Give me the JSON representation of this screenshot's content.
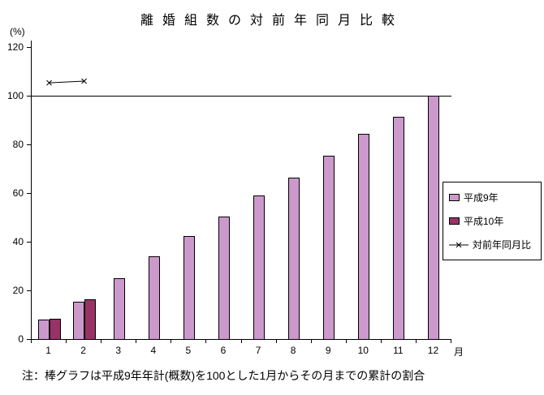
{
  "chart_data": {
    "type": "bar",
    "title": "離婚組数の対前年同月比較",
    "ylabel": "(%)",
    "xlabel": "月",
    "ylim": [
      0,
      120
    ],
    "yticks": [
      0,
      20,
      40,
      60,
      80,
      100,
      120
    ],
    "categories": [
      "1",
      "2",
      "3",
      "4",
      "5",
      "6",
      "7",
      "8",
      "9",
      "10",
      "11",
      "12"
    ],
    "reference_line": 100,
    "grid": false,
    "legend_position": "right",
    "series": [
      {
        "name": "平成9年",
        "type": "bar",
        "color": "#cc99cc",
        "values": [
          8,
          15.5,
          25,
          34,
          42.5,
          50.5,
          59,
          66.5,
          75.5,
          84.5,
          91.5,
          100
        ]
      },
      {
        "name": "平成10年",
        "type": "bar",
        "color": "#993366",
        "values": [
          8.3,
          16.2,
          null,
          null,
          null,
          null,
          null,
          null,
          null,
          null,
          null,
          null
        ]
      },
      {
        "name": "対前年同月比",
        "type": "line",
        "color": "#000000",
        "marker": "x",
        "values": [
          105.3,
          106,
          null,
          null,
          null,
          null,
          null,
          null,
          null,
          null,
          null,
          null
        ]
      }
    ],
    "note": "注：棒グラフは平成9年年計(概数)を100とした1月からその月までの累計の割合"
  }
}
